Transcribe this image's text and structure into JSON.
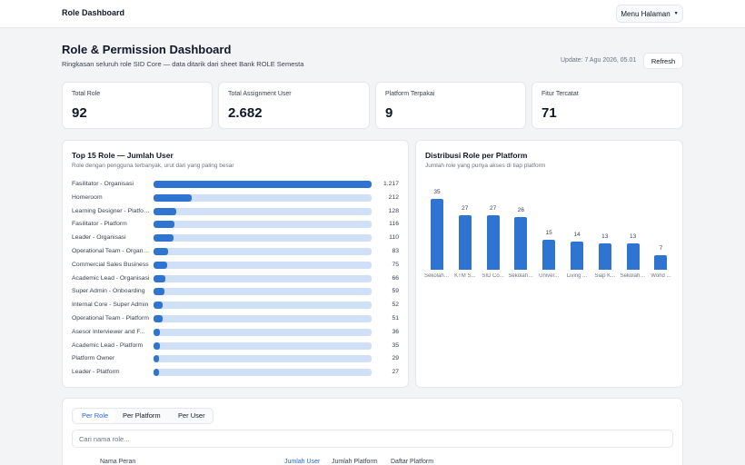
{
  "header": {
    "app_title": "Role Dashboard",
    "menu_label": "Menu Halaman",
    "menu_icon": "caret-down-icon"
  },
  "page": {
    "title": "Role & Permission Dashboard",
    "subtitle": "Ringkasan seluruh role SID Core — data ditarik dari sheet Bank ROLE Semesta",
    "update": "Update: 7 Agu 2026, 05.01",
    "refresh_label": "Refresh"
  },
  "stats": [
    {
      "label": "Total Role",
      "value": "92"
    },
    {
      "label": "Total Assignment User",
      "value": "2.682"
    },
    {
      "label": "Platform Terpakai",
      "value": "9"
    },
    {
      "label": "Fitur Tercatat",
      "value": "71"
    }
  ],
  "colors": {
    "accent": "#2f74d0",
    "track": "#cfe0f7",
    "link": "#2563eb"
  },
  "chart_data": [
    {
      "type": "bar",
      "orientation": "horizontal",
      "title": "Top 15 Role — Jumlah User",
      "subtitle": "Role dengan pengguna terbanyak, urut dari yang paling besar",
      "categories": [
        "Fasilitator - Organisasi",
        "Homeroom",
        "Learning Designer - Platform",
        "Fasilitator - Platform",
        "Leader - Organisasi",
        "Operational Team - Organisasi",
        "Commercial Sales Business",
        "Academic Lead - Organisasi",
        "Super Admin - Onboarding",
        "Internal Core - Super Admin",
        "Operational Team - Platform",
        "Asesor Interviewer and F...",
        "Academic Lead - Platform",
        "Platform Owner",
        "Leader - Platform"
      ],
      "values": [
        1217,
        212,
        128,
        116,
        110,
        83,
        75,
        66,
        59,
        52,
        51,
        36,
        35,
        29,
        27
      ],
      "value_labels": [
        "1.217",
        "212",
        "128",
        "116",
        "110",
        "83",
        "75",
        "66",
        "59",
        "52",
        "51",
        "36",
        "35",
        "29",
        "27"
      ],
      "xlim": [
        0,
        1217
      ]
    },
    {
      "type": "bar",
      "orientation": "vertical",
      "title": "Distribusi Role per Platform",
      "subtitle": "Jumlah role yang punya akses di tiap platform",
      "categories": [
        "Sekolah ...",
        "KTM S...",
        "SID Co...",
        "Sekolah ...",
        "Univer...",
        "Living ...",
        "Siap K...",
        "Sekolah ...",
        "World ..."
      ],
      "values": [
        35,
        27,
        27,
        26,
        15,
        14,
        13,
        13,
        7
      ],
      "ylim": [
        0,
        35
      ]
    }
  ],
  "table": {
    "tabs": [
      "Per Role",
      "Per Platform",
      "Per User"
    ],
    "search_placeholder": "Cari nama role...",
    "columns": [
      "Nama Peran",
      "Jumlah User",
      "Jumlah Platform",
      "Daftar Platform"
    ]
  }
}
